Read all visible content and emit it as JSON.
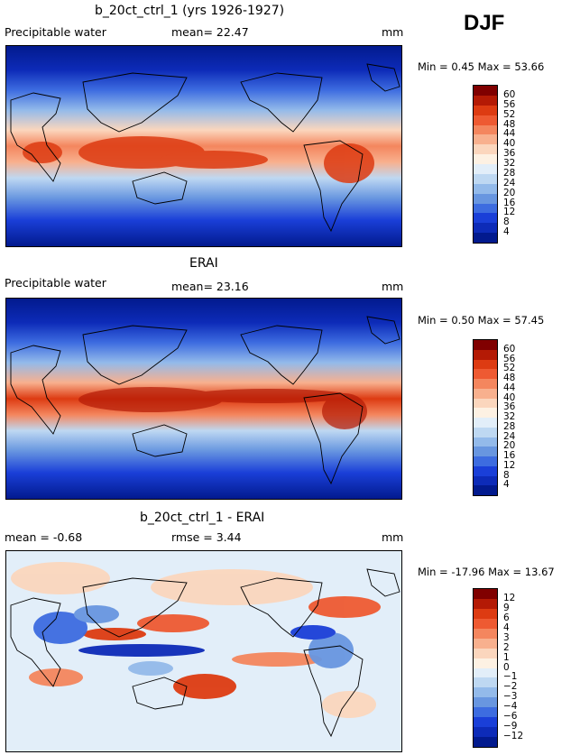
{
  "season": "DJF",
  "panels": [
    {
      "title": "b_20ct_ctrl_1 (yrs 1926-1927)",
      "left_label": "Precipitable water",
      "center_label": "mean=  22.47",
      "units": "mm",
      "min_max": "Min =    0.45  Max =   53.66",
      "colorbar": {
        "labels": [
          "60",
          "56",
          "52",
          "48",
          "44",
          "40",
          "36",
          "32",
          "28",
          "24",
          "20",
          "16",
          "12",
          "8",
          "4"
        ],
        "colors": [
          "#800000",
          "#b41a05",
          "#dd3b12",
          "#ee5a32",
          "#f4865e",
          "#f8b08e",
          "#fbd6bd",
          "#fdf1e3",
          "#e2eef9",
          "#bed8f2",
          "#93baea",
          "#6896e0",
          "#3d6ce0",
          "#1a3fd8",
          "#0d2bb8",
          "#021a8e"
        ]
      }
    },
    {
      "title": "ERAI",
      "left_label": "Precipitable water",
      "center_label": "mean=  23.16",
      "units": "mm",
      "min_max": "Min =    0.50  Max =   57.45",
      "colorbar": {
        "labels": [
          "60",
          "56",
          "52",
          "48",
          "44",
          "40",
          "36",
          "32",
          "28",
          "24",
          "20",
          "16",
          "12",
          "8",
          "4"
        ],
        "colors": [
          "#800000",
          "#b41a05",
          "#dd3b12",
          "#ee5a32",
          "#f4865e",
          "#f8b08e",
          "#fbd6bd",
          "#fdf1e3",
          "#e2eef9",
          "#bed8f2",
          "#93baea",
          "#6896e0",
          "#3d6ce0",
          "#1a3fd8",
          "#0d2bb8",
          "#021a8e"
        ]
      }
    },
    {
      "title": "b_20ct_ctrl_1 - ERAI",
      "left_label": "mean =   -0.68",
      "center_label": "rmse =    3.44",
      "units": "mm",
      "min_max": "Min = -17.96  Max =   13.67",
      "colorbar": {
        "labels": [
          "12",
          "9",
          "6",
          "4",
          "3",
          "2",
          "1",
          "0",
          "−1",
          "−2",
          "−3",
          "−4",
          "−6",
          "−9",
          "−12"
        ],
        "colors": [
          "#800000",
          "#b41a05",
          "#dd3b12",
          "#ee5a32",
          "#f4865e",
          "#f8b08e",
          "#fbd6bd",
          "#fdf1e3",
          "#e2eef9",
          "#bed8f2",
          "#93baea",
          "#6896e0",
          "#3d6ce0",
          "#1a3fd8",
          "#0d2bb8",
          "#021a8e"
        ]
      }
    }
  ]
}
